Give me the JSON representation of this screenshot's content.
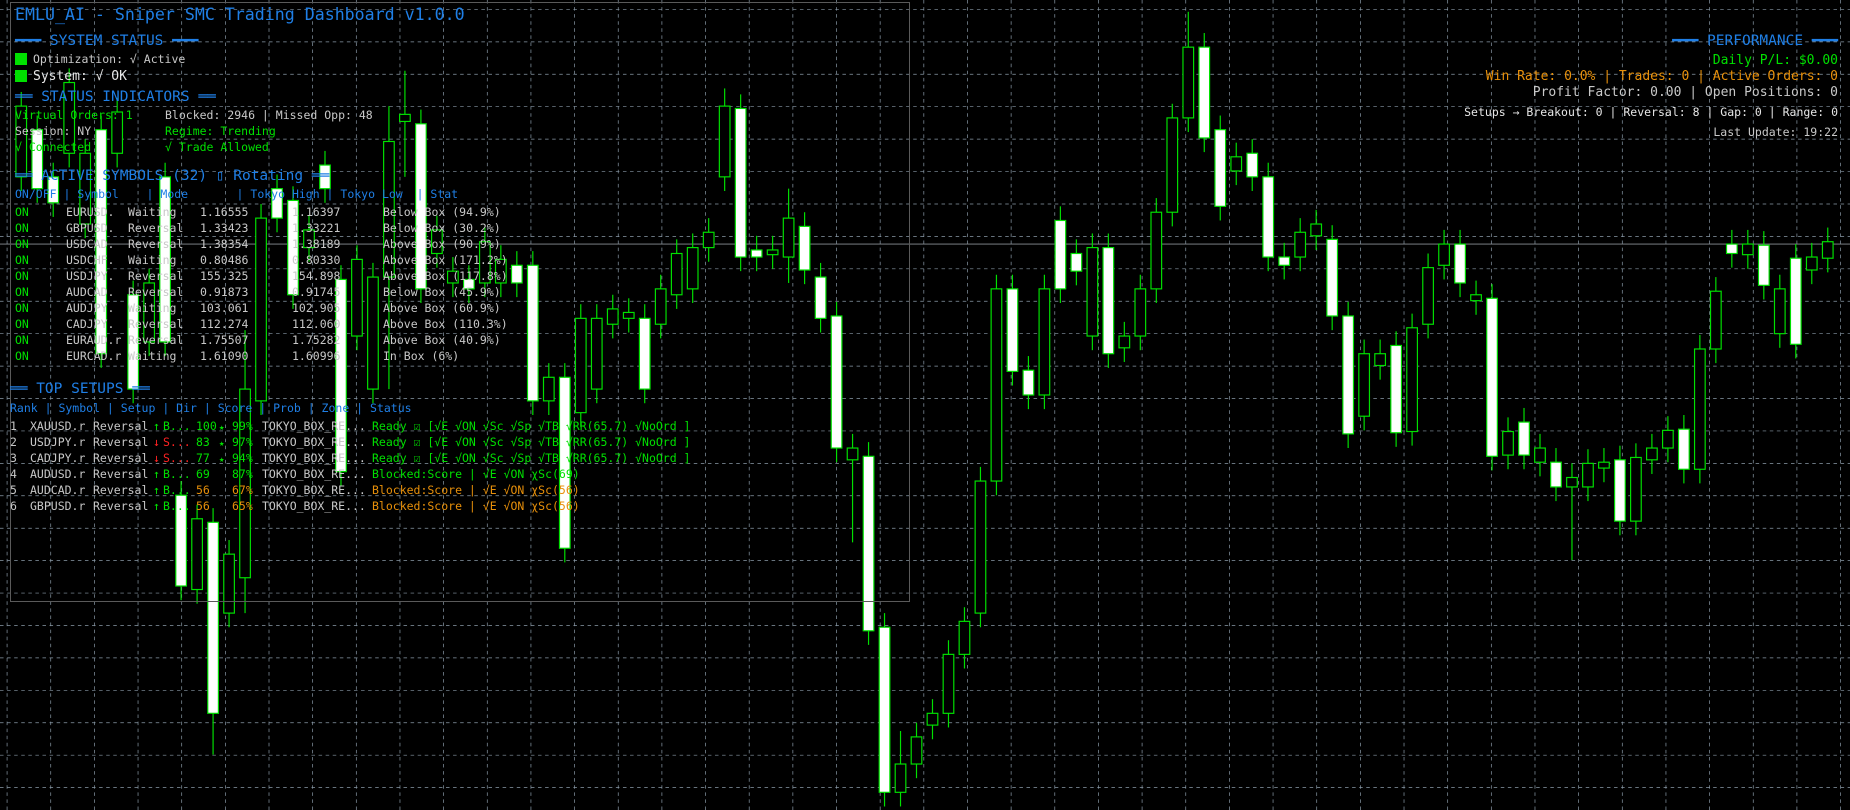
{
  "colors": {
    "header": "#1f7fe6",
    "ok": "#00e000",
    "warn": "#e8900a",
    "bad": "#ff2222",
    "text": "#c8c8c8",
    "grid": "#8a9aa8",
    "bull_outline": "#00e000",
    "bear_fill": "#ffffff"
  },
  "title": "EMLU_AI - Sniper SMC Trading Dashboard v1.0.0",
  "system_status": {
    "header": "━━━ SYSTEM STATUS ━━━",
    "optimization": "Optimization: √ Active",
    "system": "System: √ OK"
  },
  "status_indicators": {
    "header": "══ STATUS INDICATORS ══",
    "virtual_orders": "Virtual Orders: 1",
    "blocked": "Blocked: 2946 | Missed Opp: 48",
    "session": "Session: NY",
    "regime": "Regime: Trending",
    "connected": "√ Connected",
    "trade_allowed": "√ Trade Allowed"
  },
  "active_symbols": {
    "header": "══ ACTIVE SYMBOLS (32) ▯ Rotating ══",
    "columns": "ON/OFF | Symbol    | Mode       | Tokyo High | Tokyo Low  | Stat",
    "rows": [
      {
        "on": "ON",
        "symbol": "EURUSD.",
        "mode": "Waiting",
        "high": "1.16555",
        "low": "1.16397",
        "stat": "Below Box (94.9%)"
      },
      {
        "on": "ON",
        "symbol": "GBPUSD.",
        "mode": "Reversal",
        "high": "1.33423",
        "low": "1.33221",
        "stat": "Below Box (30.2%)"
      },
      {
        "on": "ON",
        "symbol": "USDCAD.",
        "mode": "Reversal",
        "high": "1.38354",
        "low": "1.38189",
        "stat": "Above Box (90.9%)"
      },
      {
        "on": "ON",
        "symbol": "USDCHF.",
        "mode": "Waiting",
        "high": "0.80486",
        "low": "0.80330",
        "stat": "Above Box (171.2%)"
      },
      {
        "on": "ON",
        "symbol": "USDJPY.",
        "mode": "Reversal",
        "high": "155.325",
        "low": "154.898",
        "stat": "Above Box (117.8%)"
      },
      {
        "on": "ON",
        "symbol": "AUDCAD.",
        "mode": "Reversal",
        "high": "0.91873",
        "low": "0.91745",
        "stat": "Below Box (45.9%)"
      },
      {
        "on": "ON",
        "symbol": "AUDJPY.",
        "mode": "Waiting",
        "high": "103.061",
        "low": "102.905",
        "stat": "Above Box (60.9%)"
      },
      {
        "on": "ON",
        "symbol": "CADJPY.",
        "mode": "Reversal",
        "high": "112.274",
        "low": "112.060",
        "stat": "Above Box (110.3%)"
      },
      {
        "on": "ON",
        "symbol": "EURAUD.r",
        "mode": "Reversal",
        "high": "1.75507",
        "low": "1.75282",
        "stat": "Above Box (40.9%)"
      },
      {
        "on": "ON",
        "symbol": "EURCAD.r",
        "mode": "Waiting",
        "high": "1.61090",
        "low": "1.60996",
        "stat": "In Box (6%)"
      }
    ]
  },
  "top_setups": {
    "header": "══ TOP SETUPS ══",
    "columns": "Rank | Symbol | Setup | Dir | Score | Prob | Zone | Status",
    "rows": [
      {
        "rank": "1",
        "symbol": "XAUUSD.r",
        "setup": "Reversal",
        "arrow": "↑",
        "dir": "B...",
        "score": "100",
        "star": "★",
        "prob": "99%",
        "zone": "TOKYO_BOX_RE...",
        "status": "Ready ☑ [√E √ON √Sc √Sp √TB √RR(65.7) √NoOrd ]",
        "dir_color": "green",
        "score_color": "green",
        "prob_color": "green",
        "status_color": "green"
      },
      {
        "rank": "2",
        "symbol": "USDJPY.r",
        "setup": "Reversal",
        "arrow": "↓",
        "dir": "S...",
        "score": "83",
        "star": "★",
        "prob": "97%",
        "zone": "TOKYO_BOX_RE...",
        "status": "Ready ☑ [√E √ON √Sc √Sp √TB √RR(65.7) √NoOrd ]",
        "dir_color": "red",
        "score_color": "green",
        "prob_color": "green",
        "status_color": "green"
      },
      {
        "rank": "3",
        "symbol": "CADJPY.r",
        "setup": "Reversal",
        "arrow": "↓",
        "dir": "S...",
        "score": "77",
        "star": "★",
        "prob": "94%",
        "zone": "TOKYO_BOX_RE...",
        "status": "Ready ☑ [√E √ON √Sc √Sp √TB √RR(65.7) √NoOrd ]",
        "dir_color": "red",
        "score_color": "green",
        "prob_color": "green",
        "status_color": "green"
      },
      {
        "rank": "4",
        "symbol": "AUDUSD.r",
        "setup": "Reversal",
        "arrow": "↑",
        "dir": "B...",
        "score": "69",
        "star": "",
        "prob": "87%",
        "zone": "TOKYO_BOX_RE...",
        "status": "Blocked:Score | √E √ON χSc(69)",
        "dir_color": "green",
        "score_color": "green",
        "prob_color": "green",
        "status_color": "green"
      },
      {
        "rank": "5",
        "symbol": "AUDCAD.r",
        "setup": "Reversal",
        "arrow": "↑",
        "dir": "B...",
        "score": "56",
        "star": "",
        "prob": "67%",
        "zone": "TOKYO_BOX_RE...",
        "status": "Blocked:Score | √E √ON χSc(56)",
        "dir_color": "green",
        "score_color": "orange",
        "prob_color": "orange",
        "status_color": "orange"
      },
      {
        "rank": "6",
        "symbol": "GBPUSD.r",
        "setup": "Reversal",
        "arrow": "↑",
        "dir": "B...",
        "score": "56",
        "star": "",
        "prob": "65%",
        "zone": "TOKYO_BOX_RE...",
        "status": "Blocked:Score | √E √ON χSc(56)",
        "dir_color": "green",
        "score_color": "orange",
        "prob_color": "orange",
        "status_color": "orange"
      }
    ]
  },
  "performance": {
    "header": "━━━ PERFORMANCE ━━━",
    "daily_pl": "Daily P/L: $0.00",
    "win_rate": "Win Rate: 0.0% | Trades: 0 | Active Orders: 0",
    "profit_factor": "Profit Factor: 0.00 | Open Positions: 0",
    "setups": "Setups → Breakout: 0 | Reversal: 8 | Gap: 0 | Range: 0",
    "last_update": "Last Update: 19:22"
  },
  "chart": {
    "current_price": 493,
    "candles": [
      [
        550,
        622,
        538,
        610
      ],
      [
        590,
        602,
        528,
        540
      ],
      [
        550,
        562,
        516,
        528
      ],
      [
        570,
        642,
        558,
        630
      ],
      [
        510,
        582,
        498,
        570
      ],
      [
        590,
        602,
        388,
        400
      ],
      [
        570,
        617,
        558,
        605
      ],
      [
        450,
        462,
        358,
        370
      ],
      [
        410,
        472,
        398,
        460
      ],
      [
        550,
        562,
        398,
        410
      ],
      [
        280,
        292,
        191,
        203
      ],
      [
        200,
        272,
        188,
        260
      ],
      [
        257,
        269,
        60,
        95
      ],
      [
        180,
        242,
        168,
        230
      ],
      [
        210,
        420,
        180,
        370
      ],
      [
        360,
        527,
        348,
        515
      ],
      [
        540,
        552,
        503,
        515
      ],
      [
        530,
        542,
        438,
        450
      ],
      [
        490,
        517,
        478,
        505
      ],
      [
        560,
        572,
        528,
        540
      ],
      [
        463,
        475,
        288,
        300
      ],
      [
        415,
        492,
        403,
        480
      ],
      [
        370,
        477,
        358,
        465
      ],
      [
        465,
        610,
        370,
        580
      ],
      [
        597,
        640,
        550,
        603
      ],
      [
        595,
        607,
        443,
        455
      ],
      [
        485,
        517,
        473,
        505
      ],
      [
        460,
        482,
        448,
        470
      ],
      [
        463,
        475,
        443,
        455
      ],
      [
        460,
        507,
        448,
        495
      ],
      [
        460,
        492,
        448,
        480
      ],
      [
        475,
        487,
        448,
        460
      ],
      [
        475,
        487,
        348,
        360
      ],
      [
        360,
        392,
        348,
        380
      ],
      [
        380,
        392,
        223,
        235
      ],
      [
        350,
        442,
        338,
        430
      ],
      [
        370,
        442,
        358,
        430
      ],
      [
        425,
        450,
        413,
        438
      ],
      [
        430,
        447,
        418,
        435
      ],
      [
        430,
        442,
        358,
        370
      ],
      [
        425,
        467,
        413,
        455
      ],
      [
        450,
        497,
        438,
        485
      ],
      [
        455,
        502,
        443,
        490
      ],
      [
        490,
        515,
        478,
        503
      ],
      [
        550,
        625,
        538,
        610
      ],
      [
        608,
        620,
        470,
        482
      ],
      [
        488,
        500,
        470,
        482
      ],
      [
        484,
        500,
        472,
        488
      ],
      [
        482,
        540,
        460,
        515
      ],
      [
        508,
        520,
        459,
        471
      ],
      [
        465,
        477,
        418,
        430
      ],
      [
        432,
        444,
        308,
        320
      ],
      [
        310,
        332,
        240,
        320
      ],
      [
        313,
        325,
        153,
        165
      ],
      [
        168,
        180,
        16,
        28
      ],
      [
        28,
        80,
        16,
        52
      ],
      [
        52,
        87,
        40,
        75
      ],
      [
        85,
        107,
        73,
        95
      ],
      [
        95,
        157,
        83,
        145
      ],
      [
        145,
        185,
        133,
        173
      ],
      [
        180,
        304,
        168,
        292
      ],
      [
        292,
        467,
        280,
        455
      ],
      [
        455,
        467,
        373,
        385
      ],
      [
        386,
        398,
        353,
        365
      ],
      [
        365,
        467,
        353,
        455
      ],
      [
        513,
        525,
        443,
        455
      ],
      [
        485,
        497,
        458,
        470
      ],
      [
        415,
        502,
        403,
        490
      ],
      [
        490,
        502,
        388,
        400
      ],
      [
        405,
        427,
        393,
        415
      ],
      [
        415,
        467,
        403,
        455
      ],
      [
        455,
        532,
        443,
        520
      ],
      [
        520,
        612,
        508,
        600
      ],
      [
        600,
        690,
        588,
        660
      ],
      [
        660,
        672,
        571,
        583
      ],
      [
        590,
        602,
        513,
        525
      ],
      [
        555,
        579,
        543,
        567
      ],
      [
        570,
        582,
        538,
        550
      ],
      [
        550,
        562,
        470,
        482
      ],
      [
        482,
        494,
        463,
        475
      ],
      [
        482,
        515,
        470,
        503
      ],
      [
        500,
        522,
        488,
        510
      ],
      [
        497,
        509,
        420,
        432
      ],
      [
        432,
        444,
        320,
        332
      ],
      [
        347,
        412,
        335,
        400
      ],
      [
        390,
        412,
        378,
        400
      ],
      [
        407,
        419,
        321,
        333
      ],
      [
        334,
        434,
        322,
        422
      ],
      [
        425,
        485,
        413,
        473
      ],
      [
        475,
        505,
        463,
        493
      ],
      [
        493,
        505,
        448,
        460
      ],
      [
        445,
        462,
        433,
        450
      ],
      [
        447,
        459,
        301,
        313
      ],
      [
        314,
        346,
        302,
        334
      ],
      [
        342,
        354,
        302,
        314
      ],
      [
        308,
        332,
        296,
        320
      ],
      [
        308,
        320,
        275,
        287
      ],
      [
        287,
        307,
        225,
        295
      ],
      [
        287,
        319,
        275,
        307
      ],
      [
        303,
        320,
        291,
        308
      ],
      [
        310,
        322,
        246,
        258
      ],
      [
        258,
        324,
        246,
        312
      ],
      [
        310,
        332,
        298,
        320
      ],
      [
        320,
        347,
        308,
        335
      ],
      [
        336,
        348,
        290,
        302
      ],
      [
        302,
        416,
        290,
        404
      ],
      [
        404,
        465,
        392,
        453
      ],
      [
        493,
        505,
        473,
        485
      ],
      [
        484,
        505,
        472,
        493
      ],
      [
        492,
        504,
        446,
        458
      ],
      [
        417,
        467,
        405,
        455
      ],
      [
        481,
        493,
        396,
        408
      ],
      [
        471,
        494,
        459,
        482
      ],
      [
        481,
        507,
        469,
        495
      ]
    ]
  }
}
